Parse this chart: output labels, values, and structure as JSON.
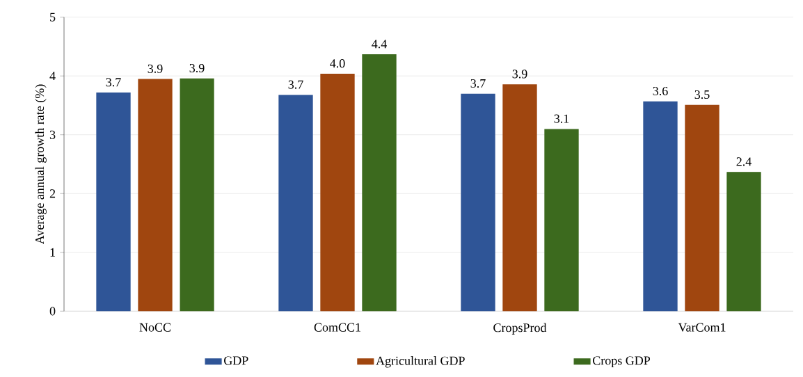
{
  "chart_data": {
    "type": "bar",
    "ylabel": "Average annual growth rate (%)",
    "categories": [
      "NoCC",
      "ComCC1",
      "CropsProd",
      "VarCom1"
    ],
    "series": [
      {
        "name": "GDP",
        "color": "#2f5597",
        "values": [
          3.71,
          3.67,
          3.69,
          3.56
        ],
        "value_labels": [
          "3.7",
          "3.7",
          "3.7",
          "3.6"
        ]
      },
      {
        "name": "Agricultural GDP",
        "color": "#a0460f",
        "values": [
          3.94,
          4.03,
          3.85,
          3.5
        ],
        "value_labels": [
          "3.9",
          "4.0",
          "3.9",
          "3.5"
        ]
      },
      {
        "name": "Crops GDP",
        "color": "#3c6a1e",
        "values": [
          3.95,
          4.36,
          3.09,
          2.36
        ],
        "value_labels": [
          "3.9",
          "4.4",
          "3.1",
          "2.4"
        ]
      }
    ],
    "ylim": [
      0,
      5
    ],
    "yticks": [
      0,
      1,
      2,
      3,
      4,
      5
    ],
    "grid": "y",
    "legend": "bottom"
  }
}
